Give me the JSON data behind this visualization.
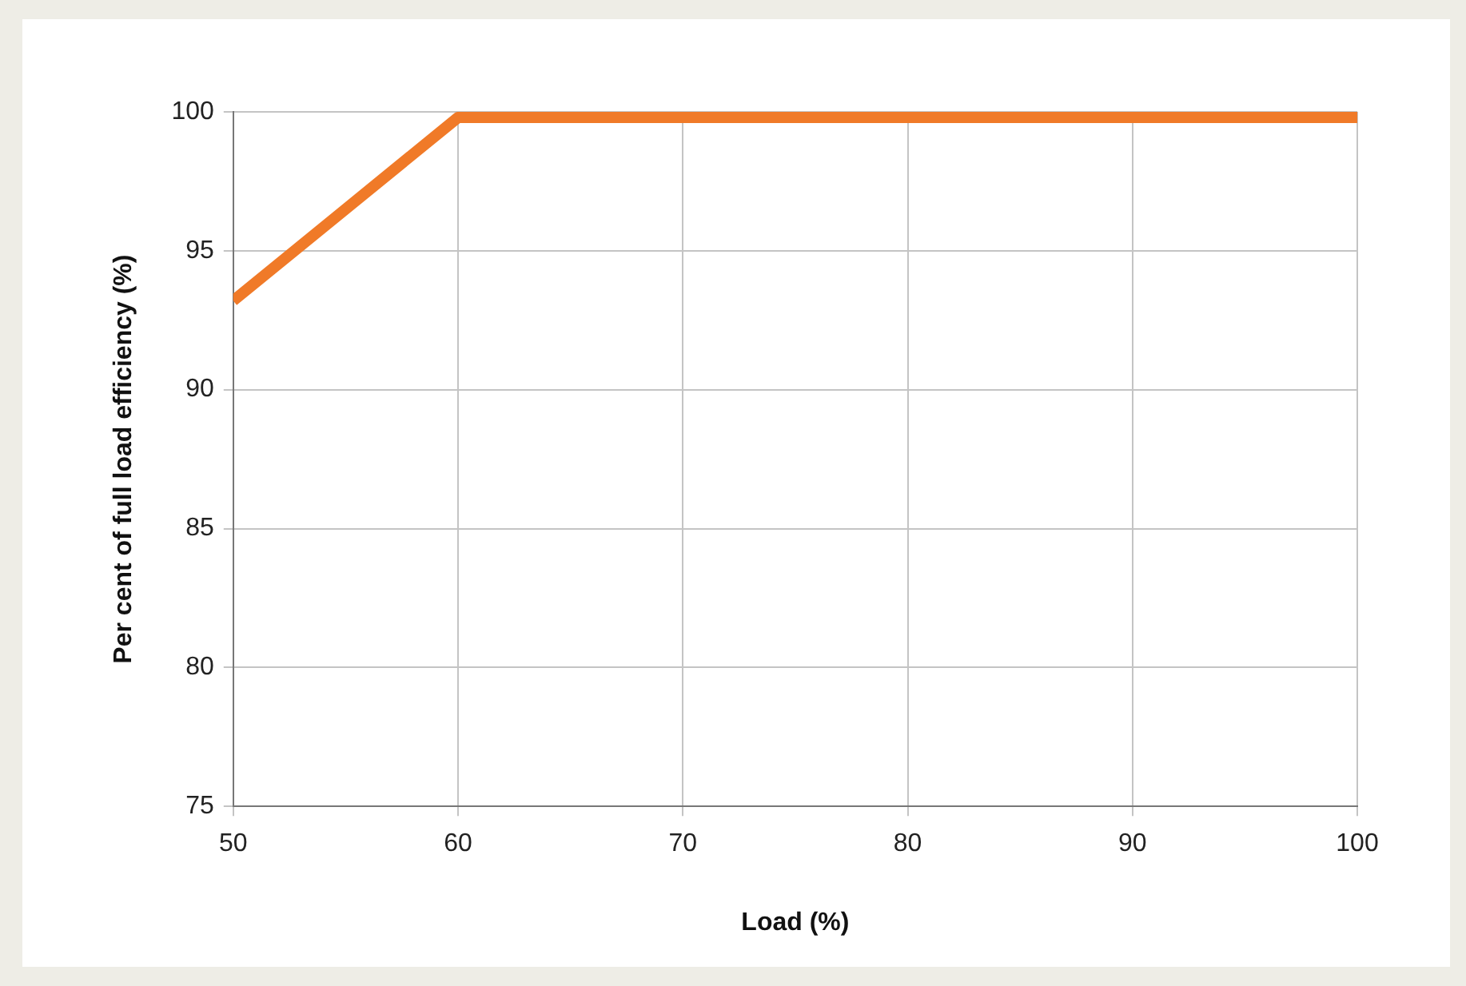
{
  "chart_data": {
    "type": "line",
    "xlabel": "Load (%)",
    "ylabel": "Per cent of full load efficiency (%)",
    "x": [
      50,
      60,
      100
    ],
    "series": [
      {
        "color": "#f07a28",
        "values": [
          93.2,
          99.8,
          99.8
        ]
      }
    ],
    "xlim": [
      50,
      100
    ],
    "xticks": [
      50,
      60,
      70,
      80,
      90,
      100
    ],
    "ylim": [
      75,
      100
    ],
    "yticks": [
      75,
      80,
      85,
      90,
      95,
      100
    ],
    "grid": true,
    "legend": false,
    "marker": "none",
    "line_style": "solid"
  }
}
